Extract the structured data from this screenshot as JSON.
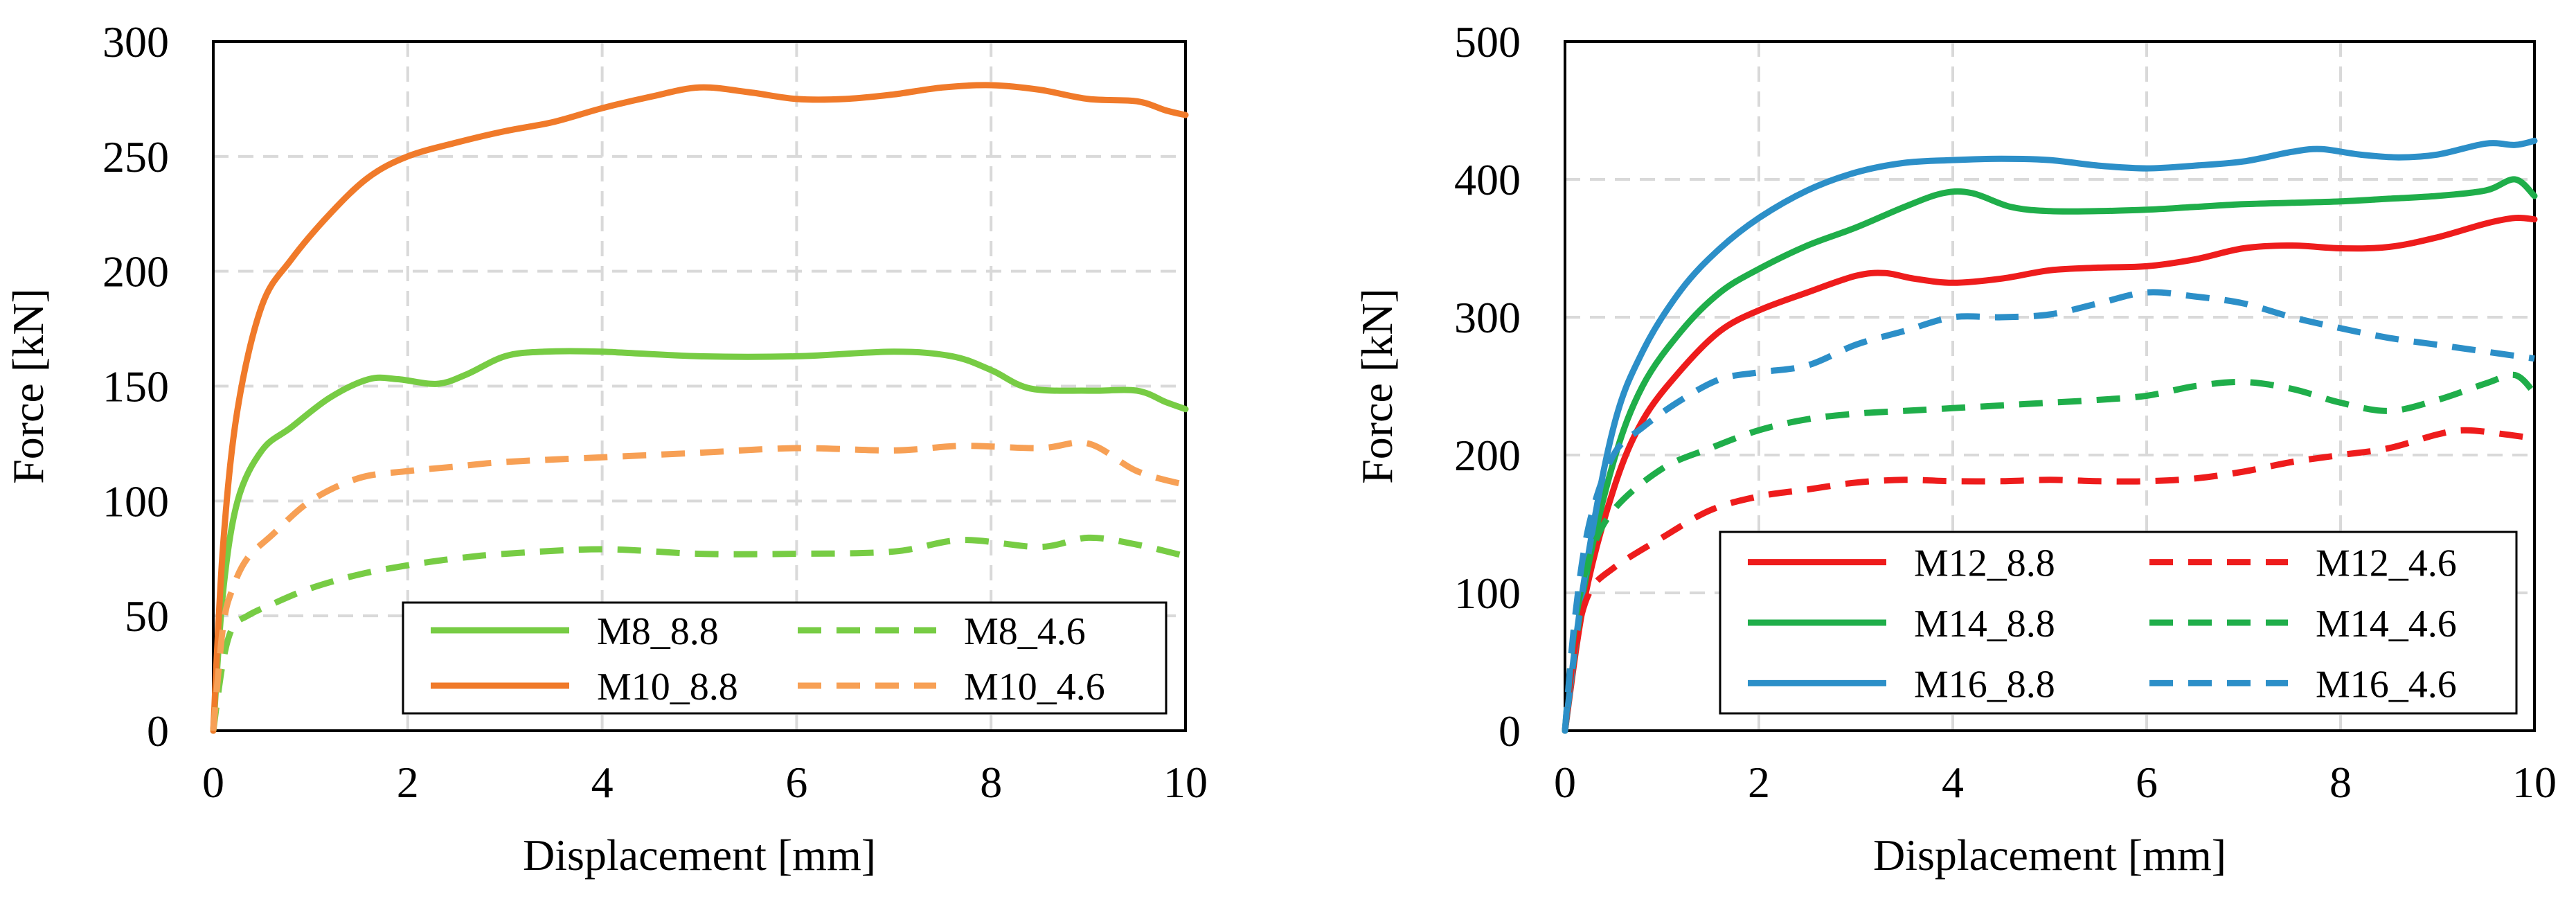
{
  "chart_data": [
    {
      "type": "line",
      "title": "",
      "xlabel": "Displacement [mm]",
      "ylabel": "Force [kN]",
      "xlim": [
        0,
        10
      ],
      "ylim": [
        0,
        300
      ],
      "xticks": [
        0,
        2,
        4,
        6,
        8,
        10
      ],
      "yticks": [
        0,
        50,
        100,
        150,
        200,
        250,
        300
      ],
      "grid": true,
      "legend_position": "bottom-right",
      "legend_columns": 2,
      "series": [
        {
          "name": "M8_8.8",
          "color": "#77cc44",
          "dash": "solid",
          "x": [
            0,
            0.1,
            0.25,
            0.5,
            0.8,
            1.2,
            1.6,
            1.9,
            2.3,
            2.6,
            3,
            3.4,
            4,
            5,
            6,
            7,
            7.6,
            8,
            8.4,
            9,
            9.5,
            9.8,
            10
          ],
          "y": [
            0,
            60,
            100,
            122,
            132,
            145,
            153,
            153,
            151,
            155,
            163,
            165,
            165,
            163,
            163,
            165,
            163,
            157,
            149,
            148,
            148,
            143,
            140
          ]
        },
        {
          "name": "M10_8.8",
          "color": "#f07a2a",
          "dash": "solid",
          "x": [
            0,
            0.1,
            0.25,
            0.5,
            0.8,
            1.2,
            1.6,
            2,
            2.5,
            3,
            3.5,
            4,
            4.5,
            5,
            5.5,
            6,
            6.5,
            7,
            7.5,
            8,
            8.5,
            9,
            9.5,
            9.8,
            10
          ],
          "y": [
            0,
            80,
            140,
            185,
            205,
            225,
            241,
            250,
            256,
            261,
            265,
            271,
            276,
            280,
            278,
            275,
            275,
            277,
            280,
            281,
            279,
            275,
            274,
            270,
            268
          ]
        },
        {
          "name": "M8_4.6",
          "color": "#77cc44",
          "dash": "dashed",
          "x": [
            0,
            0.1,
            0.2,
            0.35,
            0.6,
            1,
            1.5,
            2,
            2.5,
            3,
            4,
            5,
            6,
            7,
            7.7,
            8.5,
            9,
            9.5,
            10
          ],
          "y": [
            0,
            30,
            45,
            50,
            55,
            62,
            68,
            72,
            75,
            77,
            79,
            77,
            77,
            78,
            83,
            80,
            84,
            81,
            76
          ]
        },
        {
          "name": "M10_4.6",
          "color": "#f7a055",
          "dash": "dashed",
          "x": [
            0,
            0.1,
            0.2,
            0.35,
            0.6,
            1,
            1.5,
            2,
            2.5,
            3,
            4,
            5,
            6,
            7,
            7.7,
            8.5,
            9,
            9.5,
            10
          ],
          "y": [
            0,
            45,
            62,
            75,
            85,
            100,
            110,
            113,
            115,
            117,
            119,
            121,
            123,
            122,
            124,
            123,
            125,
            113,
            107
          ]
        }
      ]
    },
    {
      "type": "line",
      "title": "",
      "xlabel": "Displacement [mm]",
      "ylabel": "Force [kN]",
      "xlim": [
        0,
        10
      ],
      "ylim": [
        0,
        500
      ],
      "xticks": [
        0,
        2,
        4,
        6,
        8,
        10
      ],
      "yticks": [
        0,
        100,
        200,
        300,
        400,
        500
      ],
      "grid": true,
      "legend_position": "bottom-right",
      "legend_columns": 2,
      "series": [
        {
          "name": "M12_8.8",
          "color": "#ee1c1c",
          "dash": "solid",
          "x": [
            0,
            0.2,
            0.5,
            0.8,
            1.2,
            1.6,
            2,
            2.5,
            3,
            3.3,
            3.6,
            4,
            4.5,
            5,
            5.5,
            6,
            6.5,
            7,
            7.5,
            8,
            8.5,
            9,
            9.5,
            9.8,
            10
          ],
          "y": [
            0,
            95,
            175,
            225,
            262,
            290,
            305,
            318,
            330,
            332,
            328,
            325,
            328,
            334,
            336,
            337,
            342,
            350,
            352,
            350,
            351,
            358,
            368,
            372,
            371
          ]
        },
        {
          "name": "M14_8.8",
          "color": "#1fae4a",
          "dash": "solid",
          "x": [
            0,
            0.2,
            0.5,
            0.8,
            1.2,
            1.6,
            2,
            2.5,
            3,
            3.5,
            3.9,
            4.2,
            4.6,
            5,
            5.5,
            6,
            6.5,
            7,
            7.5,
            8,
            8.5,
            9,
            9.5,
            9.8,
            10
          ],
          "y": [
            0,
            105,
            195,
            250,
            290,
            318,
            335,
            352,
            365,
            380,
            390,
            390,
            380,
            377,
            377,
            378,
            380,
            382,
            383,
            384,
            386,
            388,
            392,
            400,
            388
          ]
        },
        {
          "name": "M16_8.8",
          "color": "#2c8fc8",
          "dash": "solid",
          "x": [
            0,
            0.2,
            0.5,
            0.8,
            1.2,
            1.6,
            2,
            2.5,
            3,
            3.5,
            4,
            4.5,
            5,
            5.5,
            6,
            6.5,
            7,
            7.5,
            7.8,
            8.2,
            8.6,
            9,
            9.5,
            9.8,
            10
          ],
          "y": [
            0,
            110,
            220,
            275,
            320,
            350,
            372,
            392,
            405,
            412,
            414,
            415,
            414,
            410,
            408,
            410,
            413,
            420,
            422,
            418,
            416,
            418,
            426,
            425,
            428
          ]
        },
        {
          "name": "M12_4.6",
          "color": "#ee1c1c",
          "dash": "dashed",
          "x": [
            0,
            0.1,
            0.25,
            0.5,
            1,
            1.5,
            2,
            2.5,
            3,
            3.5,
            4,
            4.5,
            5,
            5.5,
            6,
            6.5,
            7,
            7.5,
            8,
            8.5,
            9,
            9.3,
            9.7,
            10
          ],
          "y": [
            0,
            60,
            100,
            118,
            140,
            160,
            170,
            175,
            180,
            182,
            181,
            181,
            182,
            181,
            181,
            183,
            188,
            195,
            200,
            205,
            215,
            218,
            215,
            212
          ]
        },
        {
          "name": "M14_4.6",
          "color": "#1fae4a",
          "dash": "dashed",
          "x": [
            0,
            0.1,
            0.25,
            0.5,
            1,
            1.5,
            2,
            2.5,
            3,
            3.5,
            4,
            4.5,
            5,
            5.5,
            6,
            6.5,
            7,
            7.5,
            8,
            8.5,
            9,
            9.5,
            9.8,
            10
          ],
          "y": [
            0,
            75,
            125,
            160,
            190,
            205,
            218,
            226,
            230,
            232,
            234,
            236,
            238,
            240,
            243,
            250,
            253,
            248,
            238,
            232,
            240,
            252,
            258,
            245
          ]
        },
        {
          "name": "M16_4.6",
          "color": "#2c8fc8",
          "dash": "dashed",
          "x": [
            0,
            0.1,
            0.25,
            0.5,
            0.8,
            1.2,
            1.6,
            2,
            2.5,
            3,
            3.5,
            4,
            4.5,
            5,
            5.5,
            6,
            6.5,
            7,
            7.5,
            8,
            8.5,
            9,
            9.5,
            10
          ],
          "y": [
            0,
            80,
            150,
            200,
            220,
            240,
            255,
            260,
            265,
            280,
            290,
            300,
            300,
            302,
            310,
            318,
            315,
            310,
            300,
            292,
            285,
            280,
            275,
            270
          ]
        }
      ]
    }
  ]
}
